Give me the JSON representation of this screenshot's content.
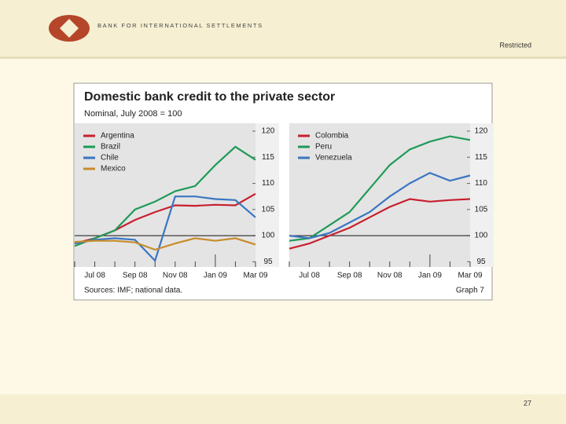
{
  "header": {
    "org": "BANK FOR INTERNATIONAL SETTLEMENTS",
    "classification": "Restricted"
  },
  "figure": {
    "title": "Domestic bank credit to the private sector",
    "subtitle": "Nominal, July 2008 = 100",
    "source": "Sources: IMF; national data.",
    "number": "Graph 7"
  },
  "footer": {
    "page": "27"
  },
  "chart_data": [
    {
      "type": "line",
      "categories": [
        null,
        "Jul 08",
        null,
        "Sep 08",
        null,
        "Nov 08",
        null,
        "Jan 09",
        null,
        "Mar 09"
      ],
      "ylim": [
        94,
        121.5
      ],
      "yticks": [
        95,
        100,
        105,
        110,
        115,
        120
      ],
      "reference_line": 100,
      "legend": "top-left",
      "series": [
        {
          "name": "Argentina",
          "color": "#c8202f",
          "values": [
            98.5,
            99.5,
            101,
            103,
            104.5,
            105.8,
            105.7,
            105.9,
            105.8,
            108
          ]
        },
        {
          "name": "Brazil",
          "color": "#1e9b57",
          "values": [
            98,
            99.5,
            101,
            105,
            106.5,
            108.5,
            109.5,
            113.5,
            117,
            114.5
          ]
        },
        {
          "name": "Chile",
          "color": "#3a76c2",
          "values": [
            98.5,
            99.2,
            99.5,
            99.2,
            95.2,
            107.5,
            107.5,
            107,
            106.8,
            103.5
          ]
        },
        {
          "name": "Mexico",
          "color": "#c88c2b",
          "values": [
            98.8,
            99,
            99,
            98.7,
            97.3,
            98.5,
            99.5,
            99,
            99.5,
            98.3
          ]
        }
      ]
    },
    {
      "type": "line",
      "categories": [
        null,
        "Jul 08",
        null,
        "Sep 08",
        null,
        "Nov 08",
        null,
        "Jan 09",
        null,
        "Mar 09"
      ],
      "ylim": [
        94,
        121.5
      ],
      "yticks": [
        95,
        100,
        105,
        110,
        115,
        120
      ],
      "reference_line": 100,
      "legend": "top-left",
      "series": [
        {
          "name": "Colombia",
          "color": "#c8202f",
          "values": [
            97.5,
            98.5,
            100,
            101.5,
            103.5,
            105.5,
            107,
            106.5,
            106.8,
            107
          ]
        },
        {
          "name": "Peru",
          "color": "#1e9b57",
          "values": [
            99,
            99.5,
            102,
            104.5,
            109,
            113.5,
            116.5,
            118,
            119,
            118.3
          ]
        },
        {
          "name": "Venezuela",
          "color": "#3a76c2",
          "values": [
            100,
            99.5,
            100.5,
            102.5,
            104.5,
            107.5,
            110,
            112,
            110.5,
            111.5
          ]
        }
      ]
    }
  ]
}
